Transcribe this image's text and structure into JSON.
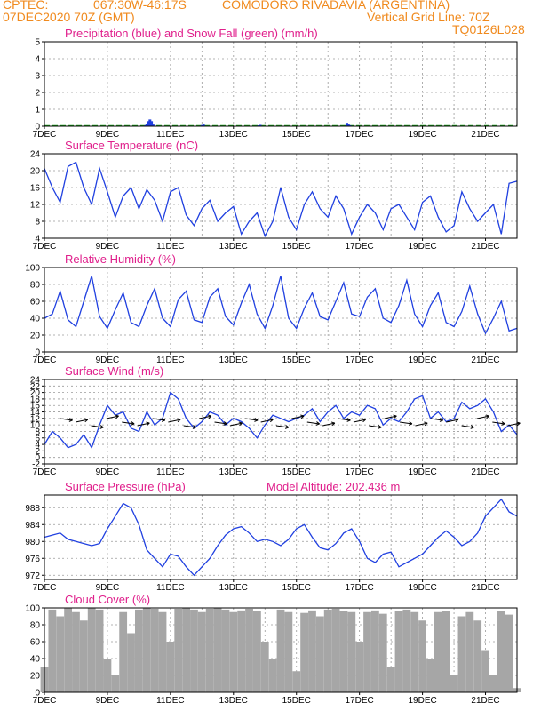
{
  "header": {
    "source": "CPTEC:",
    "coords": "067:30W-46:17S",
    "station": "COMODORO RIVADAVIA (ARGENTINA)",
    "init_time": "07DEC2020 70Z (GMT)",
    "grid_note": "Vertical Grid Line: 70Z",
    "model_code": "TQ0126L028"
  },
  "chart_data": [
    {
      "type": "bar",
      "title": "Precipitation (blue) and Snow Fall (green) (mm/h)",
      "x_ticks": [
        "7DEC",
        "9DEC",
        "11DEC",
        "13DEC",
        "15DEC",
        "17DEC",
        "19DEC",
        "21DEC"
      ],
      "xlim": [
        0,
        15
      ],
      "ylim": [
        0,
        5
      ],
      "y_ticks": [
        0,
        1,
        2,
        3,
        4,
        5
      ],
      "grid": true,
      "series": [
        {
          "name": "Precipitation",
          "color": "#1f3fe0",
          "x": [
            3.2,
            3.25,
            3.3,
            3.35,
            3.4,
            3.45,
            5.0,
            5.05,
            6.8,
            6.85,
            9.6,
            9.65,
            9.7
          ],
          "values": [
            0.05,
            0.15,
            0.3,
            0.4,
            0.3,
            0.1,
            0.06,
            0.1,
            0.05,
            0.08,
            0.2,
            0.15,
            0.05
          ]
        },
        {
          "name": "Snow Fall",
          "color": "#1aa01a",
          "values": [
            0
          ]
        }
      ]
    },
    {
      "type": "line",
      "title": "Surface Temperature (nC)",
      "x_ticks": [
        "7DEC",
        "9DEC",
        "11DEC",
        "13DEC",
        "15DEC",
        "17DEC",
        "19DEC",
        "21DEC"
      ],
      "xlim": [
        0,
        15
      ],
      "ylim": [
        4,
        24
      ],
      "y_ticks": [
        4,
        8,
        12,
        16,
        20,
        24
      ],
      "grid": true,
      "color": "#2040e0",
      "series": [
        {
          "x": [
            0,
            0.25,
            0.5,
            0.75,
            1.0,
            1.25,
            1.5,
            1.75,
            2.0,
            2.25,
            2.5,
            2.75,
            3.0,
            3.25,
            3.5,
            3.75,
            4.0,
            4.25,
            4.5,
            4.75,
            5.0,
            5.25,
            5.5,
            5.75,
            6.0,
            6.25,
            6.5,
            6.75,
            7.0,
            7.25,
            7.5,
            7.75,
            8.0,
            8.25,
            8.5,
            8.75,
            9.0,
            9.25,
            9.5,
            9.75,
            10.0,
            10.25,
            10.5,
            10.75,
            11.0,
            11.25,
            11.5,
            11.75,
            12.0,
            12.25,
            12.5,
            12.75,
            13.0,
            13.25,
            13.5,
            13.75,
            14.0,
            14.25,
            14.5,
            14.75,
            15.0
          ],
          "values": [
            20.5,
            16,
            12.5,
            21,
            22,
            16,
            12,
            20.5,
            15,
            9,
            14,
            16,
            11,
            15.5,
            13,
            8,
            15,
            16,
            9.5,
            7,
            11,
            13,
            8,
            10,
            11.5,
            5,
            8,
            10,
            4.5,
            8,
            16,
            9,
            6,
            12,
            15,
            11,
            9,
            14,
            11,
            5,
            9,
            12,
            10,
            6,
            11,
            12,
            9,
            6,
            12.5,
            14,
            9,
            5.5,
            7,
            15,
            11,
            8,
            10,
            12,
            5,
            17,
            17.5
          ]
        }
      ]
    },
    {
      "type": "line",
      "title": "Relative Humidity (%)",
      "x_ticks": [
        "7DEC",
        "9DEC",
        "11DEC",
        "13DEC",
        "15DEC",
        "17DEC",
        "19DEC",
        "21DEC"
      ],
      "xlim": [
        0,
        15
      ],
      "ylim": [
        0,
        100
      ],
      "y_ticks": [
        0,
        20,
        40,
        60,
        80,
        100
      ],
      "grid": true,
      "color": "#2040e0",
      "series": [
        {
          "x": [
            0,
            0.25,
            0.5,
            0.75,
            1.0,
            1.25,
            1.5,
            1.75,
            2.0,
            2.25,
            2.5,
            2.75,
            3.0,
            3.25,
            3.5,
            3.75,
            4.0,
            4.25,
            4.5,
            4.75,
            5.0,
            5.25,
            5.5,
            5.75,
            6.0,
            6.25,
            6.5,
            6.75,
            7.0,
            7.25,
            7.5,
            7.75,
            8.0,
            8.25,
            8.5,
            8.75,
            9.0,
            9.25,
            9.5,
            9.75,
            10.0,
            10.25,
            10.5,
            10.75,
            11.0,
            11.25,
            11.5,
            11.75,
            12.0,
            12.25,
            12.5,
            12.75,
            13.0,
            13.25,
            13.5,
            13.75,
            14.0,
            14.25,
            14.5,
            14.75,
            15.0
          ],
          "values": [
            40,
            45,
            72,
            38,
            30,
            60,
            90,
            42,
            28,
            50,
            70,
            35,
            30,
            55,
            75,
            40,
            30,
            62,
            72,
            38,
            35,
            65,
            75,
            42,
            32,
            58,
            80,
            45,
            28,
            55,
            90,
            40,
            28,
            52,
            70,
            42,
            38,
            60,
            82,
            45,
            42,
            65,
            75,
            40,
            35,
            55,
            85,
            45,
            30,
            55,
            70,
            35,
            30,
            48,
            78,
            45,
            22,
            40,
            60,
            25,
            28
          ]
        }
      ]
    },
    {
      "type": "line",
      "title": "Surface Wind (m/s)",
      "x_ticks": [
        "7DEC",
        "9DEC",
        "11DEC",
        "13DEC",
        "15DEC",
        "17DEC",
        "19DEC",
        "21DEC"
      ],
      "xlim": [
        0,
        15
      ],
      "ylim": [
        -2,
        24
      ],
      "y_ticks": [
        -2,
        0,
        2,
        4,
        6,
        8,
        10,
        12,
        14,
        16,
        18,
        20,
        22,
        24
      ],
      "grid": true,
      "color": "#2040e0",
      "series": [
        {
          "x": [
            0,
            0.25,
            0.5,
            0.75,
            1.0,
            1.25,
            1.5,
            1.75,
            2.0,
            2.25,
            2.5,
            2.75,
            3.0,
            3.25,
            3.5,
            3.75,
            4.0,
            4.25,
            4.5,
            4.75,
            5.0,
            5.25,
            5.5,
            5.75,
            6.0,
            6.25,
            6.5,
            6.75,
            7.0,
            7.25,
            7.5,
            7.75,
            8.0,
            8.25,
            8.5,
            8.75,
            9.0,
            9.25,
            9.5,
            9.75,
            10.0,
            10.25,
            10.5,
            10.75,
            11.0,
            11.25,
            11.5,
            11.75,
            12.0,
            12.25,
            12.5,
            12.75,
            13.0,
            13.25,
            13.5,
            13.75,
            14.0,
            14.25,
            14.5,
            14.75,
            15.0
          ],
          "values": [
            4,
            8,
            6,
            3,
            4,
            7,
            3,
            10,
            16,
            13,
            14,
            9,
            8,
            14,
            10,
            12,
            20,
            18,
            12,
            9,
            11,
            14,
            13,
            10,
            12,
            11,
            9,
            6,
            10,
            13,
            12,
            11,
            12,
            13,
            15,
            11,
            14,
            16,
            12,
            14,
            13,
            16,
            15,
            10,
            12,
            11,
            14,
            18,
            19,
            12,
            14,
            11,
            12,
            17,
            15,
            16,
            18,
            14,
            8,
            10,
            7
          ]
        }
      ]
    },
    {
      "type": "line",
      "title": "Surface Pressure (hPa)",
      "annotation": "Model Altitude: 202.436 m",
      "x_ticks": [
        "7DEC",
        "9DEC",
        "11DEC",
        "13DEC",
        "15DEC",
        "17DEC",
        "19DEC",
        "21DEC"
      ],
      "xlim": [
        0,
        15
      ],
      "ylim": [
        971,
        991
      ],
      "y_ticks": [
        972,
        976,
        980,
        984,
        988
      ],
      "grid": true,
      "color": "#2040e0",
      "series": [
        {
          "x": [
            0,
            0.25,
            0.5,
            0.75,
            1.0,
            1.25,
            1.5,
            1.75,
            2.0,
            2.25,
            2.5,
            2.75,
            3.0,
            3.25,
            3.5,
            3.75,
            4.0,
            4.25,
            4.5,
            4.75,
            5.0,
            5.25,
            5.5,
            5.75,
            6.0,
            6.25,
            6.5,
            6.75,
            7.0,
            7.25,
            7.5,
            7.75,
            8.0,
            8.25,
            8.5,
            8.75,
            9.0,
            9.25,
            9.5,
            9.75,
            10.0,
            10.25,
            10.5,
            10.75,
            11.0,
            11.25,
            11.5,
            11.75,
            12.0,
            12.25,
            12.5,
            12.75,
            13.0,
            13.25,
            13.5,
            13.75,
            14.0,
            14.25,
            14.5,
            14.75,
            15.0
          ],
          "values": [
            981,
            981.5,
            982,
            980.5,
            980,
            979.5,
            979,
            979.5,
            983,
            986,
            989,
            988,
            984,
            978,
            976,
            974,
            977,
            976.5,
            974,
            972,
            974,
            976,
            979,
            981.5,
            983,
            983.5,
            982,
            980,
            980.5,
            980,
            979,
            980.5,
            983,
            984,
            981,
            978.5,
            978,
            979.5,
            982,
            983,
            980,
            976,
            975,
            977,
            977.5,
            974,
            975,
            976,
            977,
            979,
            981,
            982.5,
            981,
            979,
            980,
            982,
            986,
            988,
            990,
            987,
            986
          ]
        }
      ]
    },
    {
      "type": "bar",
      "title": "Cloud Cover (%)",
      "x_ticks": [
        "7DEC",
        "9DEC",
        "11DEC",
        "13DEC",
        "15DEC",
        "17DEC",
        "19DEC",
        "21DEC"
      ],
      "xlim": [
        0,
        15
      ],
      "ylim": [
        0,
        100
      ],
      "y_ticks": [
        0,
        20,
        40,
        60,
        80,
        100
      ],
      "grid": true,
      "color": "#a6a6a6",
      "series": [
        {
          "x": [
            0,
            0.25,
            0.5,
            0.75,
            1.0,
            1.25,
            1.5,
            1.75,
            2.0,
            2.25,
            2.5,
            2.75,
            3.0,
            3.25,
            3.5,
            3.75,
            4.0,
            4.25,
            4.5,
            4.75,
            5.0,
            5.25,
            5.5,
            5.75,
            6.0,
            6.25,
            6.5,
            6.75,
            7.0,
            7.25,
            7.5,
            7.75,
            8.0,
            8.25,
            8.5,
            8.75,
            9.0,
            9.25,
            9.5,
            9.75,
            10.0,
            10.25,
            10.5,
            10.75,
            11.0,
            11.25,
            11.5,
            11.75,
            12.0,
            12.25,
            12.5,
            12.75,
            13.0,
            13.25,
            13.5,
            13.75,
            14.0,
            14.25,
            14.5,
            14.75,
            15.0
          ],
          "values": [
            30,
            98,
            90,
            100,
            95,
            85,
            100,
            98,
            40,
            20,
            95,
            70,
            98,
            100,
            99,
            95,
            60,
            99,
            100,
            98,
            95,
            99,
            100,
            98,
            95,
            97,
            99,
            96,
            60,
            40,
            98,
            95,
            25,
            94,
            97,
            90,
            98,
            99,
            96,
            95,
            60,
            95,
            97,
            93,
            30,
            96,
            98,
            95,
            85,
            40,
            95,
            96,
            20,
            90,
            95,
            85,
            50,
            20,
            96,
            92,
            5
          ]
        }
      ]
    }
  ]
}
